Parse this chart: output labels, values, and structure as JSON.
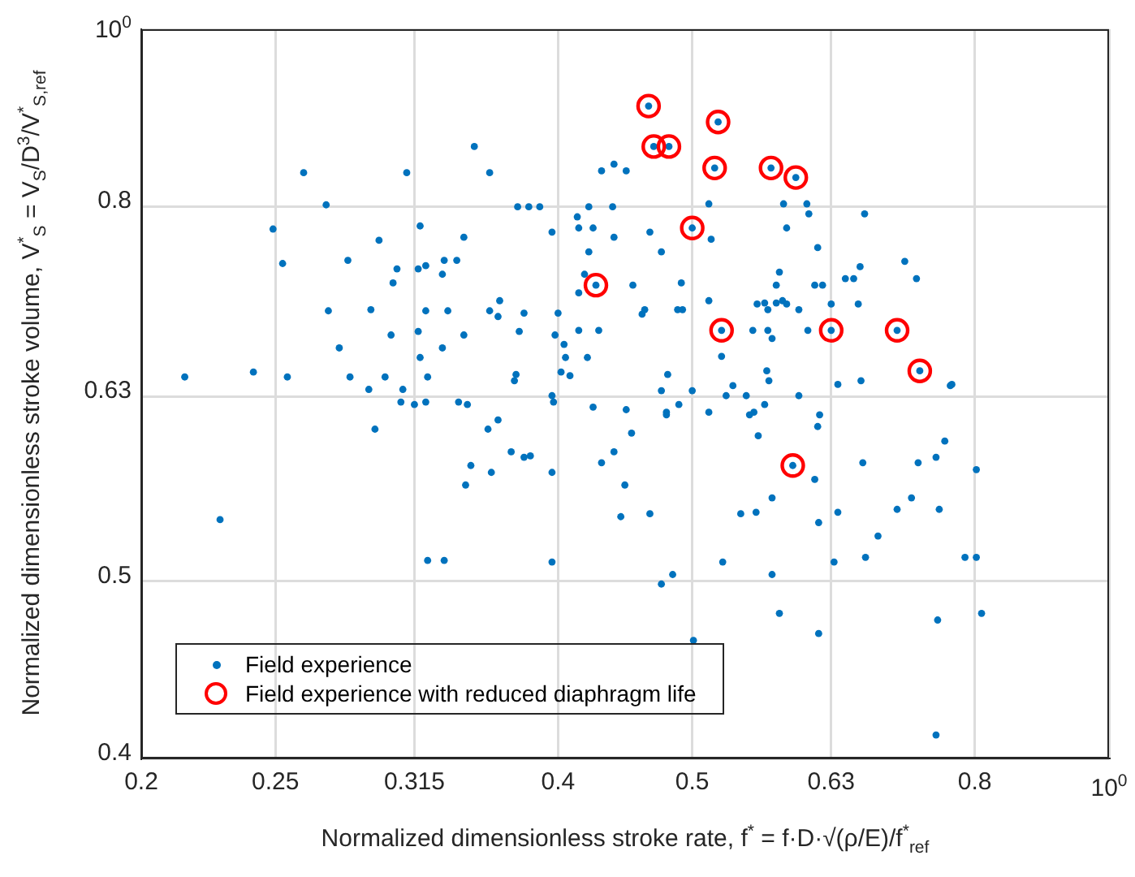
{
  "chart_data": {
    "type": "scatter",
    "xlabel": "Normalized dimensionless stroke rate, f$^{*}$ = f·D·√(ρ/E)/f$^{*}$$_{ref}$",
    "ylabel": "Normalized dimensionless stroke volume, V$^{*}$$_{S}$ = V$_{S}$/D$^{3}$/V$^{*}$$_{S,ref}$",
    "log": "xy",
    "xlim": [
      0.2,
      1
    ],
    "ylim": [
      0.4,
      1
    ],
    "xticks": [
      0.2,
      0.25,
      0.315,
      0.4,
      0.5,
      0.63,
      0.8,
      {
        "value": 1,
        "label": "10$^{0}$"
      }
    ],
    "yticks": [
      0.4,
      0.5,
      0.63,
      0.8,
      {
        "value": 1,
        "label": "10$^{0}$"
      }
    ],
    "grid": true,
    "legend": "bottom left",
    "series": [
      {
        "name": "Field experience",
        "color": "#0072bd",
        "marker": "circle",
        "x": [
          0.215,
          0.241,
          0.255,
          0.228,
          0.262,
          0.272,
          0.249,
          0.253,
          0.273,
          0.278,
          0.282,
          0.283,
          0.292,
          0.293,
          0.295,
          0.297,
          0.3,
          0.303,
          0.304,
          0.306,
          0.308,
          0.309,
          0.311,
          0.315,
          0.317,
          0.317,
          0.318,
          0.318,
          0.321,
          0.321,
          0.321,
          0.322,
          0.322,
          0.33,
          0.33,
          0.331,
          0.331,
          0.333,
          0.338,
          0.339,
          0.342,
          0.342,
          0.343,
          0.344,
          0.346,
          0.348,
          0.356,
          0.357,
          0.357,
          0.358,
          0.362,
          0.362,
          0.363,
          0.37,
          0.372,
          0.373,
          0.374,
          0.375,
          0.378,
          0.378,
          0.381,
          0.382,
          0.388,
          0.396,
          0.396,
          0.396,
          0.396,
          0.397,
          0.398,
          0.4,
          0.402,
          0.404,
          0.405,
          0.408,
          0.413,
          0.414,
          0.414,
          0.414,
          0.418,
          0.42,
          0.421,
          0.421,
          0.424,
          0.424,
          0.426,
          0.428,
          0.43,
          0.43,
          0.438,
          0.439,
          0.439,
          0.439,
          0.444,
          0.447,
          0.448,
          0.448,
          0.452,
          0.453,
          0.46,
          0.462,
          0.465,
          0.466,
          0.466,
          0.469,
          0.475,
          0.475,
          0.475,
          0.479,
          0.479,
          0.48,
          0.481,
          0.484,
          0.488,
          0.489,
          0.491,
          0.492,
          0.5,
          0.5,
          0.501,
          0.514,
          0.514,
          0.514,
          0.516,
          0.519,
          0.522,
          0.525,
          0.525,
          0.526,
          0.529,
          0.535,
          0.542,
          0.547,
          0.55,
          0.553,
          0.554,
          0.556,
          0.557,
          0.558,
          0.564,
          0.564,
          0.566,
          0.567,
          0.567,
          0.568,
          0.57,
          0.571,
          0.571,
          0.571,
          0.575,
          0.575,
          0.578,
          0.578,
          0.581,
          0.582,
          0.585,
          0.585,
          0.591,
          0.594,
          0.597,
          0.597,
          0.605,
          0.606,
          0.607,
          0.613,
          0.613,
          0.616,
          0.616,
          0.617,
          0.617,
          0.618,
          0.621,
          0.63,
          0.63,
          0.633,
          0.637,
          0.637,
          0.645,
          0.654,
          0.659,
          0.661,
          0.662,
          0.664,
          0.666,
          0.667,
          0.681,
          0.703,
          0.703,
          0.712,
          0.72,
          0.726,
          0.728,
          0.73,
          0.75,
          0.75,
          0.752,
          0.754,
          0.761,
          0.768,
          0.77,
          0.787,
          0.802,
          0.802,
          0.809
        ],
        "values": [
          0.646,
          0.65,
          0.646,
          0.54,
          0.835,
          0.802,
          0.778,
          0.745,
          0.702,
          0.67,
          0.748,
          0.646,
          0.636,
          0.703,
          0.605,
          0.767,
          0.646,
          0.681,
          0.727,
          0.74,
          0.626,
          0.636,
          0.835,
          0.624,
          0.74,
          0.684,
          0.662,
          0.781,
          0.743,
          0.702,
          0.626,
          0.646,
          0.513,
          0.735,
          0.67,
          0.748,
          0.513,
          0.702,
          0.748,
          0.626,
          0.77,
          0.681,
          0.564,
          0.624,
          0.578,
          0.863,
          0.605,
          0.702,
          0.835,
          0.573,
          0.697,
          0.612,
          0.711,
          0.588,
          0.643,
          0.648,
          0.8,
          0.684,
          0.7,
          0.584,
          0.8,
          0.585,
          0.8,
          0.775,
          0.631,
          0.573,
          0.512,
          0.626,
          0.681,
          0.7,
          0.65,
          0.673,
          0.662,
          0.647,
          0.79,
          0.779,
          0.718,
          0.685,
          0.735,
          0.662,
          0.8,
          0.756,
          0.779,
          0.622,
          0.725,
          0.685,
          0.837,
          0.58,
          0.8,
          0.844,
          0.77,
          0.588,
          0.542,
          0.564,
          0.837,
          0.62,
          0.602,
          0.725,
          0.699,
          0.703,
          0.908,
          0.775,
          0.544,
          0.863,
          0.756,
          0.635,
          0.498,
          0.618,
          0.616,
          0.648,
          0.863,
          0.504,
          0.703,
          0.624,
          0.727,
          0.703,
          0.779,
          0.635,
          0.464,
          0.803,
          0.711,
          0.618,
          0.768,
          0.84,
          0.89,
          0.685,
          0.663,
          0.512,
          0.631,
          0.639,
          0.544,
          0.631,
          0.616,
          0.685,
          0.618,
          0.545,
          0.708,
          0.6,
          0.709,
          0.624,
          0.651,
          0.703,
          0.685,
          0.643,
          0.84,
          0.678,
          0.555,
          0.504,
          0.725,
          0.709,
          0.737,
          0.48,
          0.711,
          0.803,
          0.779,
          0.708,
          0.578,
          0.83,
          0.703,
          0.631,
          0.803,
          0.685,
          0.793,
          0.725,
          0.568,
          0.76,
          0.607,
          0.538,
          0.468,
          0.616,
          0.725,
          0.708,
          0.685,
          0.512,
          0.64,
          0.545,
          0.731,
          0.731,
          0.708,
          0.742,
          0.643,
          0.58,
          0.793,
          0.515,
          0.529,
          0.685,
          0.547,
          0.747,
          0.555,
          0.731,
          0.58,
          0.651,
          0.584,
          0.412,
          0.476,
          0.547,
          0.596,
          0.639,
          0.64,
          0.515,
          0.575,
          0.515,
          0.48
        ]
      },
      {
        "name": "Field experience with reduced diaphragm life",
        "color": "#ff0000",
        "marker": "hollow circle",
        "x": [
          0.465,
          0.522,
          0.469,
          0.481,
          0.519,
          0.57,
          0.594,
          0.5,
          0.426,
          0.525,
          0.63,
          0.703,
          0.73,
          0.591
        ],
        "values": [
          0.908,
          0.89,
          0.863,
          0.863,
          0.84,
          0.84,
          0.83,
          0.779,
          0.725,
          0.685,
          0.685,
          0.685,
          0.651,
          0.578
        ]
      }
    ]
  }
}
